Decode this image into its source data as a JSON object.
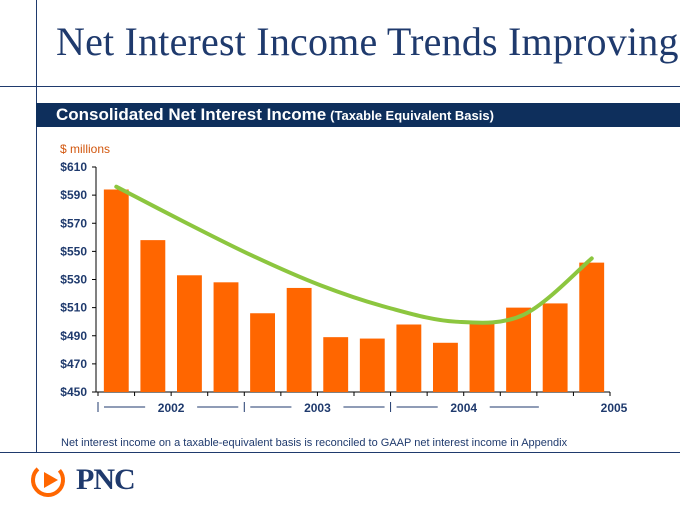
{
  "title": "Net Interest Income Trends Improving",
  "banner": {
    "main": "Consolidated Net Interest Income",
    "sub": "(Taxable Equivalent Basis)"
  },
  "footnote": "Net interest income on a taxable-equivalent basis is reconciled to GAAP net interest income in Appendix",
  "logo": {
    "text": "PNC"
  },
  "colors": {
    "bar": "#ff6600",
    "trend": "#8cc63f",
    "navy": "#1f3a6d",
    "axis": "#000000"
  },
  "chart_data": {
    "type": "bar",
    "ylabel": "$ millions",
    "ylim": [
      450,
      610
    ],
    "yticks": [
      "$610",
      "$590",
      "$570",
      "$550",
      "$530",
      "$510",
      "$490",
      "$470",
      "$450"
    ],
    "ytick_values": [
      610,
      590,
      570,
      550,
      530,
      510,
      490,
      470,
      450
    ],
    "categories": [
      "2002 Q1",
      "2002 Q2",
      "2002 Q3",
      "2002 Q4",
      "2003 Q1",
      "2003 Q2",
      "2003 Q3",
      "2003 Q4",
      "2004 Q1",
      "2004 Q2",
      "2004 Q3",
      "2004 Q4",
      "2005 Q1",
      "2005 Q2"
    ],
    "values": [
      594,
      558,
      533,
      528,
      506,
      524,
      489,
      488,
      498,
      485,
      499,
      510,
      513,
      542
    ],
    "year_labels": [
      "2002",
      "2003",
      "2004",
      "2005"
    ],
    "trend": [
      596,
      571,
      547,
      526,
      510,
      500,
      505,
      545
    ]
  }
}
